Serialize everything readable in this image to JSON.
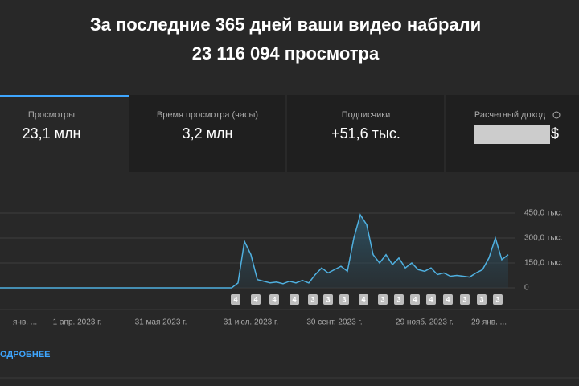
{
  "header": {
    "title_line1": "За последние 365 дней ваши видео набрали",
    "title_line2": "23 116 094 просмотра"
  },
  "tabs": [
    {
      "label": "Просмотры",
      "value": "23,1 млн"
    },
    {
      "label": "Время просмотра (часы)",
      "value": "3,2 млн"
    },
    {
      "label": "Подписчики",
      "value": "+51,6 тыс."
    },
    {
      "label": "Расчетный доход",
      "value": "$"
    }
  ],
  "chart_data": {
    "type": "line",
    "color": "#4fb0e0",
    "grid": true,
    "categories": [
      null,
      null,
      "янв. ...",
      null,
      null,
      null,
      null,
      null,
      null,
      null,
      null,
      null,
      "1 апр. 2023 г.",
      null,
      null,
      null,
      null,
      null,
      null,
      null,
      null,
      null,
      null,
      null,
      null,
      "31 мая 2023 г.",
      null,
      null,
      null,
      null,
      null,
      null,
      null,
      null,
      null,
      null,
      null,
      null,
      null,
      "31 июл. 2023 г.",
      null,
      null,
      null,
      null,
      null,
      null,
      null,
      null,
      null,
      null,
      null,
      null,
      "30 сент. 2023 г.",
      null,
      null,
      null,
      null,
      null,
      null,
      null,
      null,
      null,
      null,
      null,
      null,
      null,
      "29 нояб. 2023 г.",
      null,
      null,
      null,
      null,
      null,
      null,
      null,
      null,
      null,
      "29 янв. ...",
      null,
      null,
      null
    ],
    "values": [
      0,
      0,
      0,
      0,
      0,
      0,
      0,
      0,
      0,
      0,
      0,
      0,
      0,
      0,
      0,
      0,
      0,
      0,
      0,
      0,
      0,
      0,
      0,
      0,
      0,
      0,
      0,
      0,
      0,
      0,
      0,
      0,
      0,
      0,
      0,
      0,
      0,
      30000,
      280000,
      200000,
      50000,
      40000,
      30000,
      35000,
      25000,
      40000,
      30000,
      45000,
      30000,
      80000,
      120000,
      90000,
      110000,
      130000,
      100000,
      300000,
      440000,
      380000,
      200000,
      150000,
      200000,
      140000,
      180000,
      120000,
      150000,
      110000,
      100000,
      120000,
      80000,
      90000,
      70000,
      75000,
      70000,
      65000,
      90000,
      110000,
      180000,
      300000,
      170000,
      200000
    ],
    "ylim": [
      0,
      450000
    ],
    "yticks": [
      {
        "value": 0,
        "label": "0"
      },
      {
        "value": 150000,
        "label": "150,0 тыс."
      },
      {
        "value": 300000,
        "label": "300,0 тыс."
      },
      {
        "value": 450000,
        "label": "450,0 тыс."
      }
    ],
    "markers": [
      "4",
      "4",
      "4",
      "4",
      "3",
      "3",
      "3",
      "4",
      "3",
      "3",
      "4",
      "4",
      "4",
      "3",
      "3",
      "3"
    ]
  },
  "footer": {
    "link": "ОДРОБНЕЕ"
  }
}
